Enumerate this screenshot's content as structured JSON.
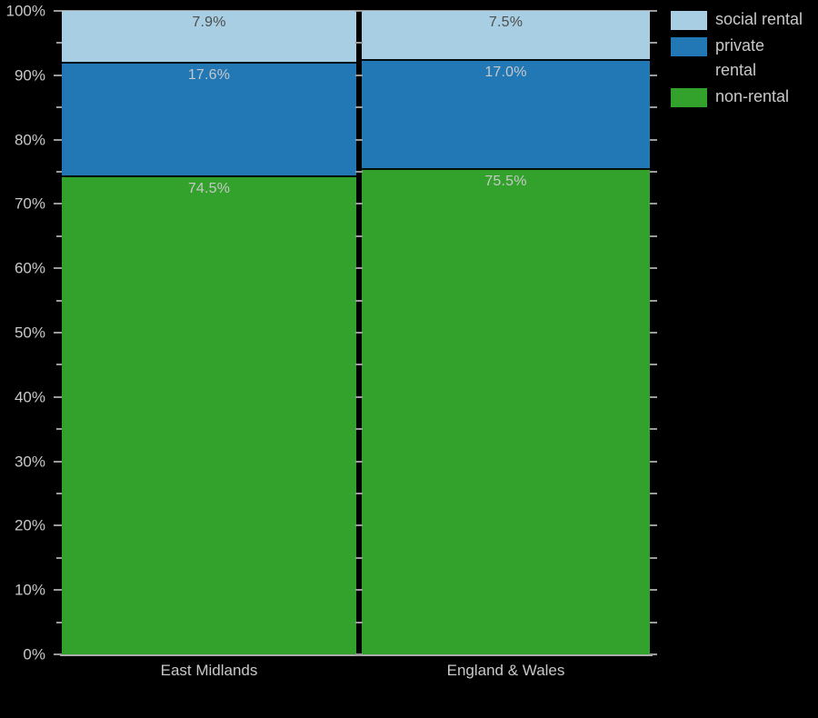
{
  "chart_data": {
    "type": "bar",
    "stacked": true,
    "percent_stack": true,
    "title": "",
    "xlabel": "",
    "ylabel": "",
    "categories": [
      "East Midlands",
      "England & Wales"
    ],
    "series": [
      {
        "name": "social rental",
        "legend_label": "social rental",
        "color": "#a8cee3",
        "values": [
          7.9,
          7.5
        ],
        "value_labels": [
          "7.9%",
          "7.5%"
        ],
        "value_label_color": "#4d4d4d"
      },
      {
        "name": "private rental",
        "legend_label": "private\nrental",
        "color": "#2278b5",
        "values": [
          17.6,
          17.0
        ],
        "value_labels": [
          "17.6%",
          "17.0%"
        ],
        "value_label_color": "#c8c8c8"
      },
      {
        "name": "non-rental",
        "legend_label": "non-rental",
        "color": "#33a22c",
        "values": [
          74.5,
          75.5
        ],
        "value_labels": [
          "74.5%",
          "75.5%"
        ],
        "value_label_color": "#c8c8c8"
      }
    ],
    "ylim": [
      0,
      100
    ],
    "y_major_step": 10,
    "y_minor_step": 5,
    "y_tick_labels": [
      "0%",
      "10%",
      "20%",
      "30%",
      "40%",
      "50%",
      "60%",
      "70%",
      "80%",
      "90%",
      "100%"
    ],
    "legend_position": "top-right",
    "grid": false
  },
  "style": {
    "background": "#000000",
    "axis_text_color": "#c8c8c8",
    "tick_color": "#9a9a9a",
    "spine_color": "#9a9a9a",
    "segment_border_color": "rgba(0,0,0,0.9)"
  }
}
